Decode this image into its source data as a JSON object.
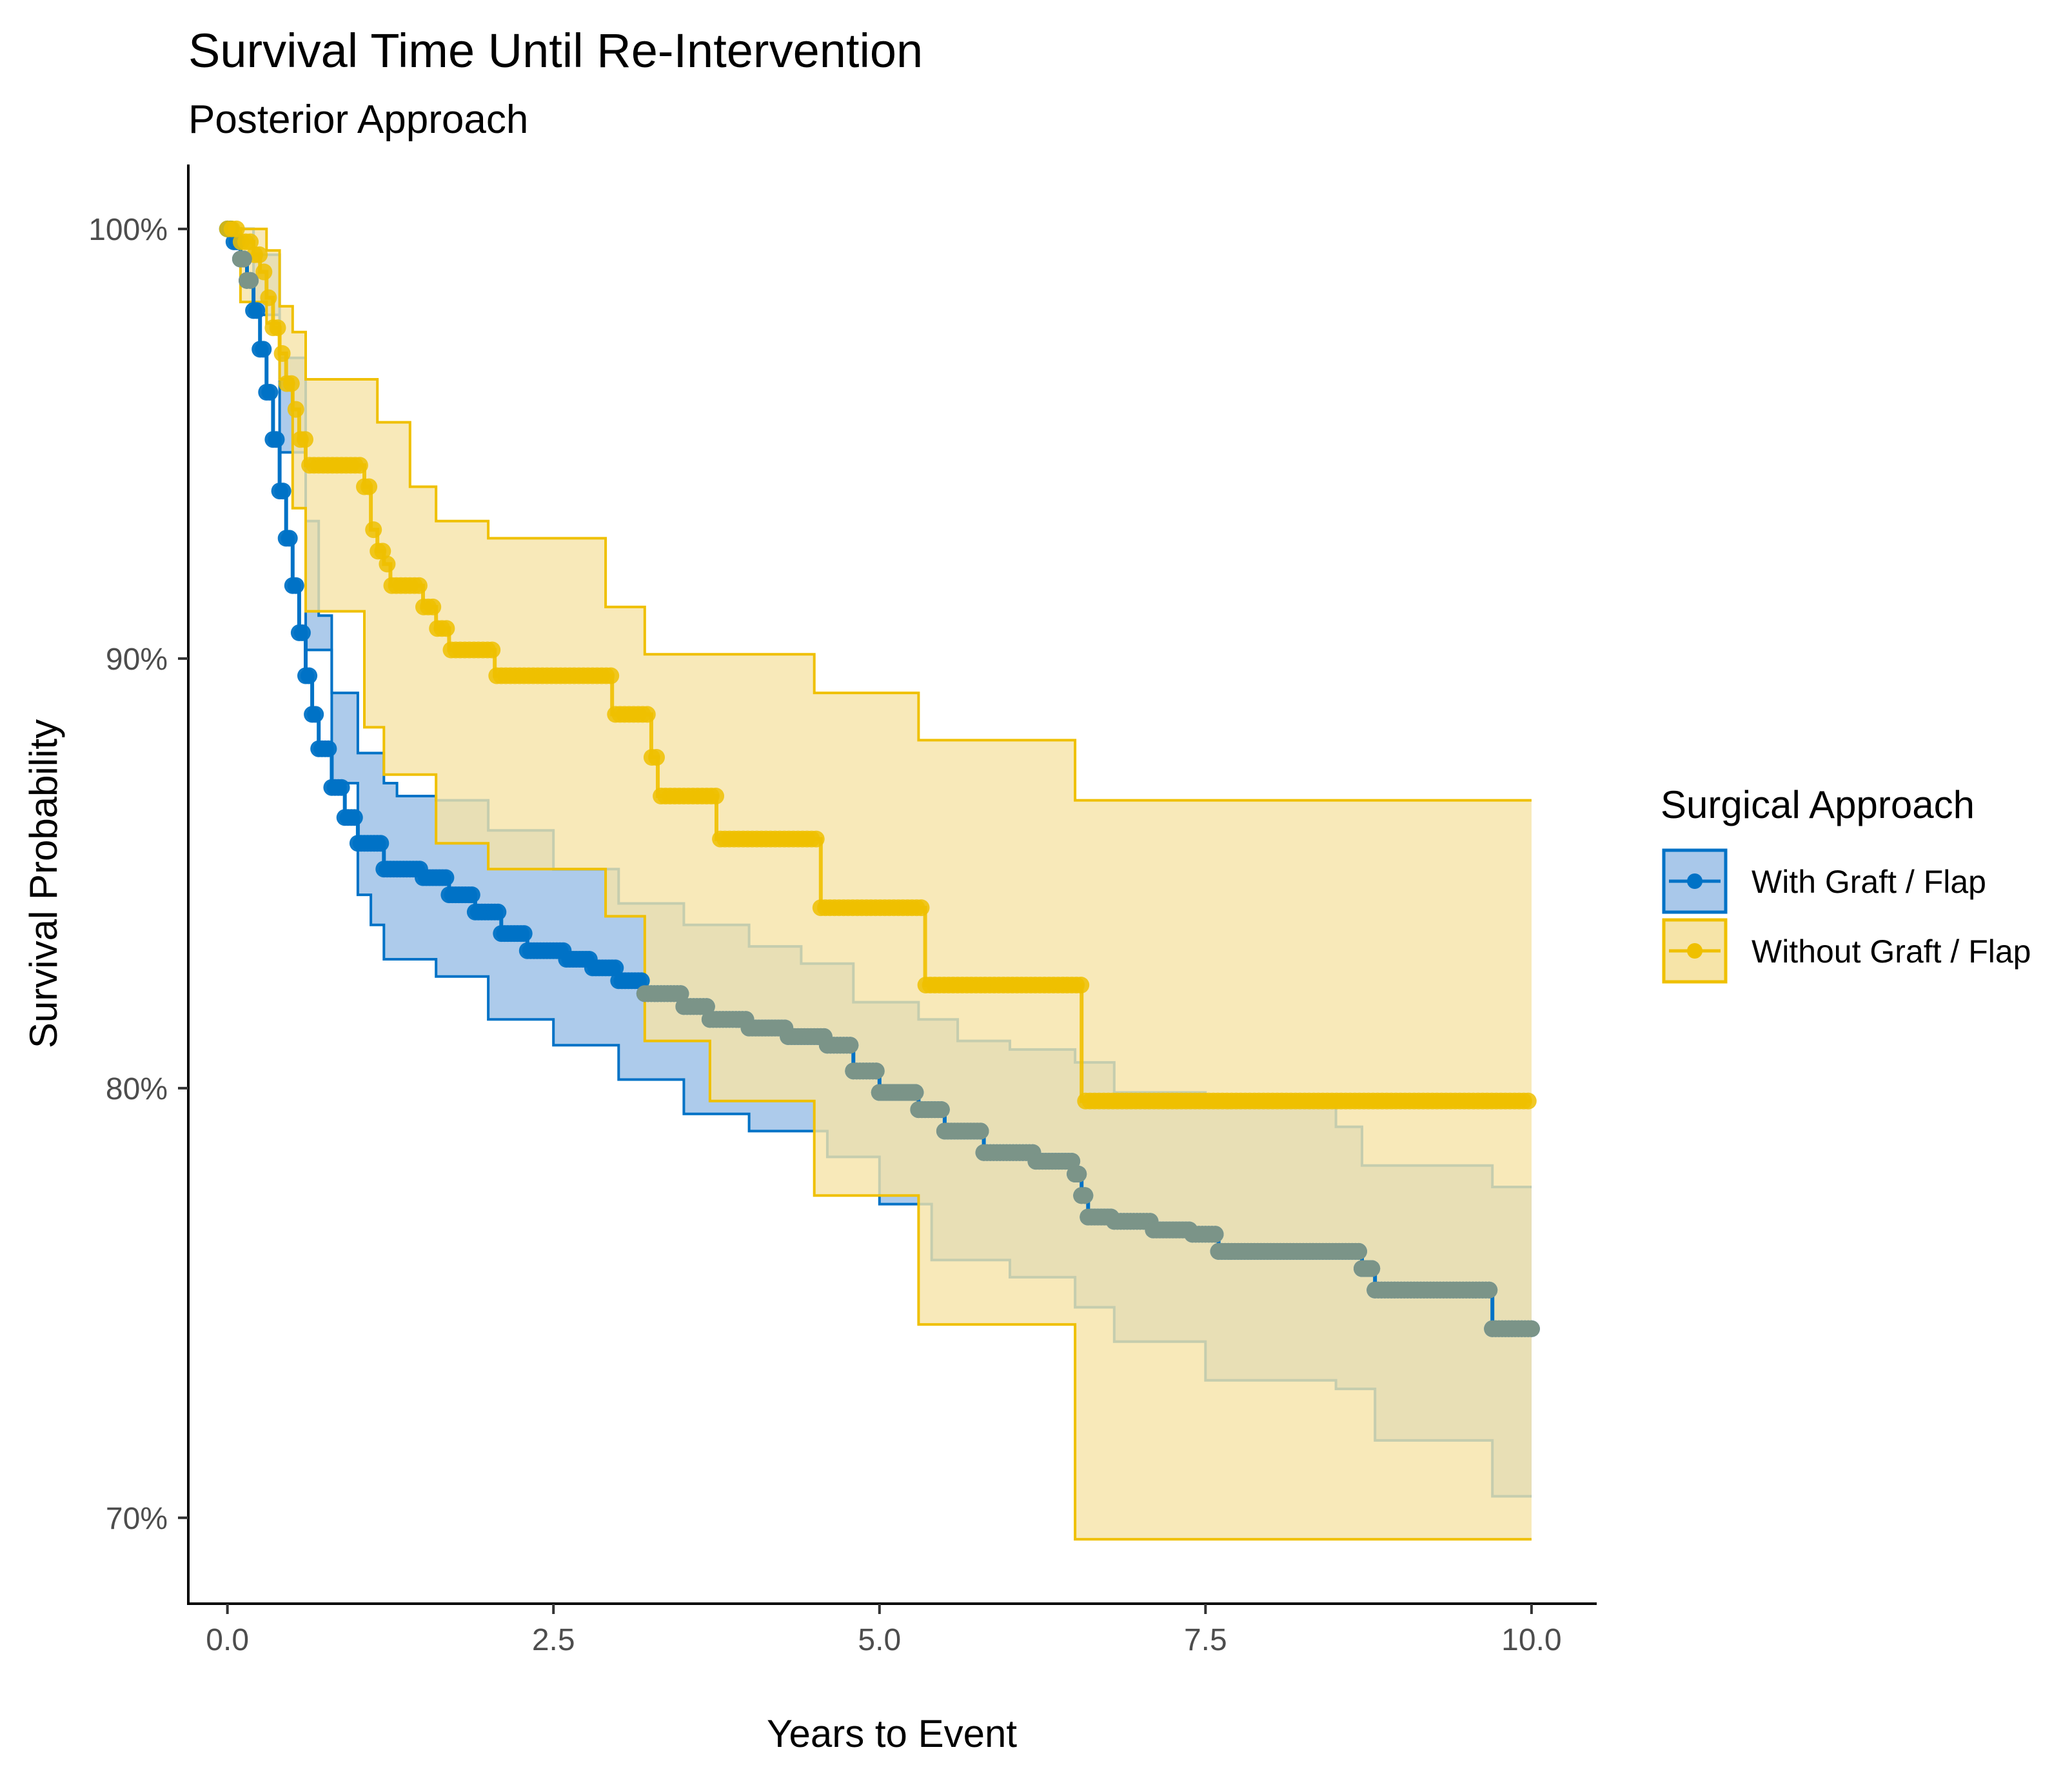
{
  "chart_data": {
    "type": "line",
    "subtype": "kaplan-meier",
    "title": "Survival Time Until Re-Intervention",
    "subtitle": "Posterior Approach",
    "xlabel": "Years to Event",
    "ylabel": "Survival Probability",
    "xlim": [
      -0.3,
      10.5
    ],
    "ylim": [
      68.0,
      101.5
    ],
    "x_ticks": [
      0,
      2.5,
      5,
      7.5,
      10
    ],
    "x_tick_labels": [
      "0.0",
      "2.5",
      "5.0",
      "7.5",
      "10.0"
    ],
    "y_ticks": [
      70,
      80,
      90,
      100
    ],
    "y_tick_labels": [
      "70%",
      "80%",
      "90%",
      "100%"
    ],
    "grid": false,
    "legend": {
      "title": "Surgical Approach",
      "position": "right"
    },
    "series": [
      {
        "name": "With Graft / Flap",
        "color": "#0072C6",
        "fill": "#A9C8EA",
        "curve": [
          [
            0,
            100
          ],
          [
            0.05,
            99.7
          ],
          [
            0.1,
            99.3
          ],
          [
            0.15,
            98.8
          ],
          [
            0.2,
            98.1
          ],
          [
            0.25,
            97.2
          ],
          [
            0.3,
            96.2
          ],
          [
            0.35,
            95.1
          ],
          [
            0.4,
            93.9
          ],
          [
            0.45,
            92.8
          ],
          [
            0.5,
            91.7
          ],
          [
            0.55,
            90.6
          ],
          [
            0.6,
            89.6
          ],
          [
            0.65,
            88.7
          ],
          [
            0.7,
            87.9
          ],
          [
            0.8,
            87.0
          ],
          [
            0.9,
            86.3
          ],
          [
            1.0,
            85.7
          ],
          [
            1.2,
            85.1
          ],
          [
            1.5,
            84.9
          ],
          [
            1.7,
            84.5
          ],
          [
            1.9,
            84.1
          ],
          [
            2.1,
            83.6
          ],
          [
            2.3,
            83.2
          ],
          [
            2.6,
            83.0
          ],
          [
            2.8,
            82.8
          ],
          [
            3.0,
            82.5
          ],
          [
            3.2,
            82.2
          ],
          [
            3.5,
            81.9
          ],
          [
            3.7,
            81.6
          ],
          [
            4.0,
            81.4
          ],
          [
            4.3,
            81.2
          ],
          [
            4.6,
            81.0
          ],
          [
            4.8,
            80.4
          ],
          [
            5.0,
            79.9
          ],
          [
            5.3,
            79.5
          ],
          [
            5.5,
            79.0
          ],
          [
            5.8,
            78.5
          ],
          [
            6.2,
            78.3
          ],
          [
            6.5,
            78.0
          ],
          [
            6.55,
            77.5
          ],
          [
            6.6,
            77.0
          ],
          [
            6.8,
            76.9
          ],
          [
            7.1,
            76.7
          ],
          [
            7.4,
            76.6
          ],
          [
            7.6,
            76.2
          ],
          [
            8.6,
            76.2
          ],
          [
            8.7,
            75.8
          ],
          [
            8.8,
            75.3
          ],
          [
            9.5,
            75.3
          ],
          [
            9.7,
            74.4
          ],
          [
            10.0,
            74.4
          ]
        ],
        "ci_upper": [
          [
            0,
            100
          ],
          [
            0.2,
            99.4
          ],
          [
            0.4,
            97.0
          ],
          [
            0.6,
            93.2
          ],
          [
            0.7,
            91.0
          ],
          [
            0.8,
            89.2
          ],
          [
            1.0,
            87.8
          ],
          [
            1.2,
            87.1
          ],
          [
            1.3,
            86.8
          ],
          [
            1.6,
            86.7
          ],
          [
            2.0,
            86.0
          ],
          [
            2.5,
            85.1
          ],
          [
            3.0,
            84.3
          ],
          [
            3.5,
            83.8
          ],
          [
            4.0,
            83.3
          ],
          [
            4.4,
            82.9
          ],
          [
            4.8,
            82.0
          ],
          [
            5.3,
            81.6
          ],
          [
            5.6,
            81.1
          ],
          [
            6.0,
            80.9
          ],
          [
            6.5,
            80.6
          ],
          [
            6.8,
            79.9
          ],
          [
            7.5,
            79.6
          ],
          [
            8.5,
            79.1
          ],
          [
            8.7,
            78.2
          ],
          [
            9.7,
            77.7
          ],
          [
            10.0,
            77.7
          ]
        ],
        "ci_lower": [
          [
            0,
            100
          ],
          [
            0.2,
            98.0
          ],
          [
            0.4,
            94.8
          ],
          [
            0.6,
            90.2
          ],
          [
            0.8,
            87.1
          ],
          [
            1.0,
            84.5
          ],
          [
            1.1,
            83.8
          ],
          [
            1.2,
            83.0
          ],
          [
            1.6,
            82.6
          ],
          [
            2.0,
            81.6
          ],
          [
            2.5,
            81.0
          ],
          [
            3.0,
            80.2
          ],
          [
            3.5,
            79.4
          ],
          [
            4.0,
            79.0
          ],
          [
            4.6,
            78.4
          ],
          [
            5.0,
            77.3
          ],
          [
            5.4,
            76.0
          ],
          [
            6.0,
            75.6
          ],
          [
            6.5,
            74.9
          ],
          [
            6.8,
            74.1
          ],
          [
            7.5,
            73.2
          ],
          [
            8.5,
            73.0
          ],
          [
            8.8,
            71.8
          ],
          [
            9.7,
            70.5
          ],
          [
            10.0,
            70.5
          ]
        ]
      },
      {
        "name": "Without Graft / Flap",
        "color": "#EFC000",
        "fill": "#F6E4A8",
        "curve": [
          [
            0,
            100
          ],
          [
            0.1,
            99.7
          ],
          [
            0.2,
            99.4
          ],
          [
            0.25,
            99.0
          ],
          [
            0.3,
            98.4
          ],
          [
            0.35,
            97.7
          ],
          [
            0.4,
            97.1
          ],
          [
            0.45,
            96.4
          ],
          [
            0.5,
            95.8
          ],
          [
            0.55,
            95.1
          ],
          [
            0.6,
            94.5
          ],
          [
            1.0,
            94.5
          ],
          [
            1.05,
            94.0
          ],
          [
            1.1,
            93.0
          ],
          [
            1.15,
            92.5
          ],
          [
            1.2,
            92.2
          ],
          [
            1.25,
            91.7
          ],
          [
            1.4,
            91.7
          ],
          [
            1.5,
            91.2
          ],
          [
            1.6,
            90.7
          ],
          [
            1.7,
            90.2
          ],
          [
            2.0,
            90.2
          ],
          [
            2.05,
            89.6
          ],
          [
            2.9,
            89.6
          ],
          [
            2.95,
            88.7
          ],
          [
            3.2,
            88.7
          ],
          [
            3.25,
            87.7
          ],
          [
            3.3,
            86.8
          ],
          [
            3.7,
            86.8
          ],
          [
            3.75,
            85.8
          ],
          [
            4.5,
            85.8
          ],
          [
            4.55,
            84.2
          ],
          [
            5.3,
            84.2
          ],
          [
            5.35,
            82.4
          ],
          [
            6.5,
            82.4
          ],
          [
            6.55,
            79.7
          ],
          [
            10.0,
            79.7
          ]
        ],
        "ci_upper": [
          [
            0,
            100
          ],
          [
            0.3,
            99.5
          ],
          [
            0.4,
            98.2
          ],
          [
            0.5,
            97.6
          ],
          [
            0.6,
            96.5
          ],
          [
            1.0,
            96.5
          ],
          [
            1.15,
            95.5
          ],
          [
            1.4,
            94.0
          ],
          [
            1.6,
            93.2
          ],
          [
            2.0,
            93.2
          ],
          [
            2.0,
            92.8
          ],
          [
            2.9,
            92.8
          ],
          [
            2.9,
            91.2
          ],
          [
            3.2,
            91.2
          ],
          [
            3.2,
            90.1
          ],
          [
            4.5,
            90.1
          ],
          [
            4.5,
            89.2
          ],
          [
            5.3,
            89.2
          ],
          [
            5.3,
            88.1
          ],
          [
            6.5,
            88.1
          ],
          [
            6.5,
            86.7
          ],
          [
            10.0,
            86.7
          ]
        ],
        "ci_lower": [
          [
            0,
            100
          ],
          [
            0.1,
            98.3
          ],
          [
            0.3,
            97.8
          ],
          [
            0.4,
            96.5
          ],
          [
            0.5,
            93.5
          ],
          [
            0.6,
            91.1
          ],
          [
            1.0,
            91.1
          ],
          [
            1.05,
            88.4
          ],
          [
            1.2,
            87.3
          ],
          [
            1.6,
            85.7
          ],
          [
            2.0,
            85.1
          ],
          [
            2.9,
            85.1
          ],
          [
            2.9,
            84.0
          ],
          [
            3.2,
            84.0
          ],
          [
            3.2,
            81.1
          ],
          [
            3.7,
            81.1
          ],
          [
            3.7,
            79.7
          ],
          [
            4.5,
            79.7
          ],
          [
            4.5,
            77.5
          ],
          [
            5.3,
            77.5
          ],
          [
            5.3,
            74.5
          ],
          [
            6.5,
            74.5
          ],
          [
            6.5,
            69.5
          ],
          [
            10.0,
            69.5
          ]
        ]
      }
    ]
  }
}
